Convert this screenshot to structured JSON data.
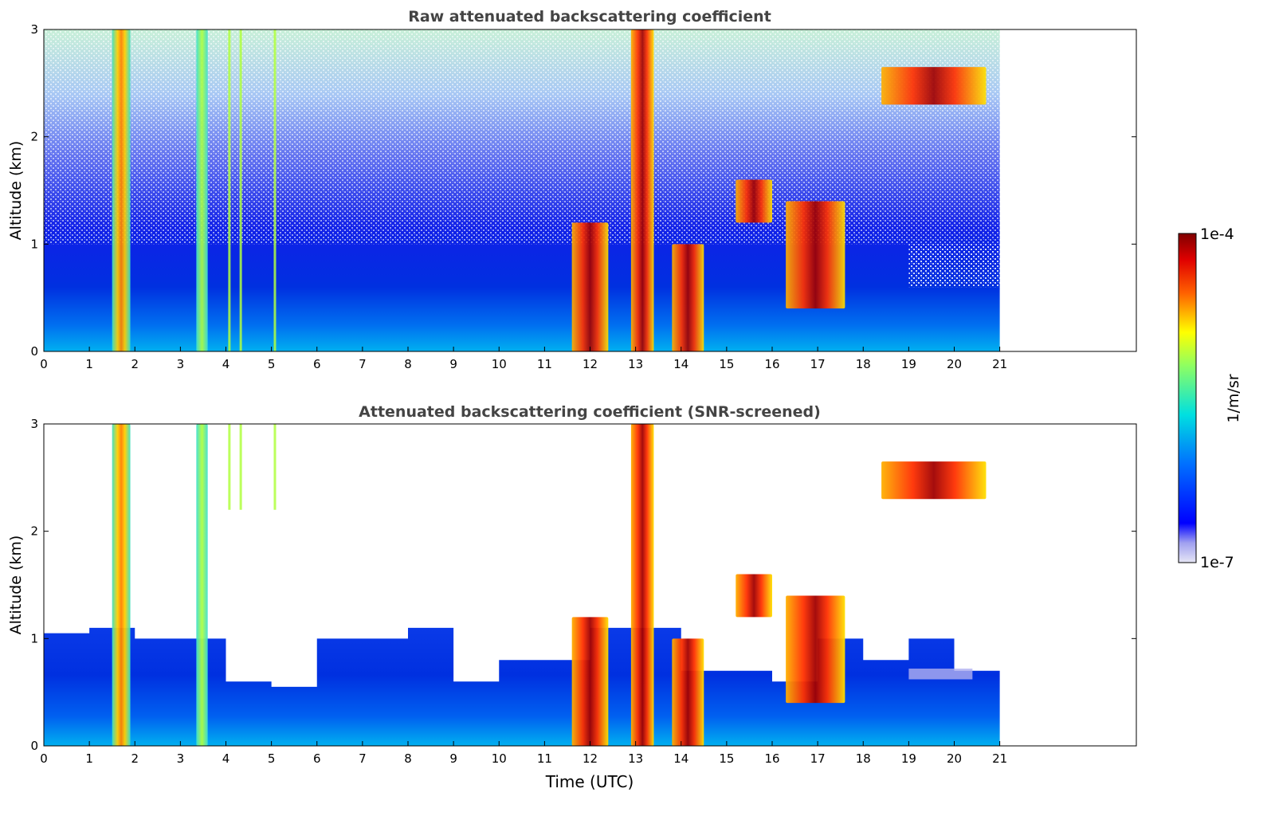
{
  "chart_data": [
    {
      "type": "heatmap",
      "title": "Raw attenuated backscattering coefficient",
      "xlabel": "",
      "ylabel": "Altitude (km)",
      "xlim": [
        0,
        24
      ],
      "ylim": [
        0,
        3
      ],
      "xticks": [
        "0",
        "1",
        "2",
        "3",
        "4",
        "5",
        "6",
        "7",
        "8",
        "9",
        "10",
        "11",
        "12",
        "13",
        "14",
        "15",
        "16",
        "17",
        "18",
        "19",
        "20",
        "21"
      ],
      "yticks": [
        "0",
        "1",
        "2",
        "3"
      ],
      "data_extent_hours": [
        0,
        21
      ],
      "features": [
        {
          "desc": "vertical plume",
          "t": [
            1.5,
            1.9
          ],
          "z": [
            0,
            3
          ],
          "level": "high"
        },
        {
          "desc": "vertical plume",
          "t": [
            3.35,
            3.6
          ],
          "z": [
            0,
            3
          ],
          "level": "medium"
        },
        {
          "desc": "thick low cloud",
          "t": [
            11.6,
            12.4
          ],
          "z": [
            0,
            1.2
          ],
          "level": "very high"
        },
        {
          "desc": "thick low cloud",
          "t": [
            12.9,
            13.4
          ],
          "z": [
            0,
            3
          ],
          "level": "very high"
        },
        {
          "desc": "thick low cloud",
          "t": [
            13.8,
            14.5
          ],
          "z": [
            0,
            1.0
          ],
          "level": "very high"
        },
        {
          "desc": "cloud layer",
          "t": [
            15.2,
            16.0
          ],
          "z": [
            1.2,
            1.6
          ],
          "level": "very high"
        },
        {
          "desc": "cloud layer",
          "t": [
            16.3,
            17.6
          ],
          "z": [
            0.4,
            1.4
          ],
          "level": "very high"
        },
        {
          "desc": "elevated cloud",
          "t": [
            18.4,
            20.7
          ],
          "z": [
            2.3,
            2.65
          ],
          "level": "very high"
        }
      ]
    },
    {
      "type": "heatmap",
      "title": "Attenuated backscattering coefficient (SNR-screened)",
      "xlabel": "Time (UTC)",
      "ylabel": "Altitude (km)",
      "xlim": [
        0,
        24
      ],
      "ylim": [
        0,
        3
      ],
      "xticks": [
        "0",
        "1",
        "2",
        "3",
        "4",
        "5",
        "6",
        "7",
        "8",
        "9",
        "10",
        "11",
        "12",
        "13",
        "14",
        "15",
        "16",
        "17",
        "18",
        "19",
        "20",
        "21"
      ],
      "yticks": [
        "0",
        "1",
        "2",
        "3"
      ],
      "data_extent_hours": [
        0,
        21
      ],
      "screened_layer_top_km": [
        1.05,
        1.1,
        1.0,
        1.0,
        0.6,
        0.55,
        1.0,
        1.0,
        1.1,
        0.6,
        0.8,
        0.8,
        1.1,
        1.1,
        0.7,
        0.7,
        0.6,
        1.0,
        0.8,
        1.0,
        0.7
      ]
    }
  ],
  "colorbar": {
    "label": "1/m/sr",
    "max_label": "1e-4",
    "min_label": "1e-7",
    "colors": [
      "#e6e6f5",
      "#b8b8f0",
      "#8c8cf5",
      "#0000ff",
      "#0050ff",
      "#00a0ff",
      "#00e0e0",
      "#40ffa0",
      "#b0ff40",
      "#ffff00",
      "#ffa000",
      "#ff4000",
      "#d00000",
      "#800000"
    ]
  }
}
